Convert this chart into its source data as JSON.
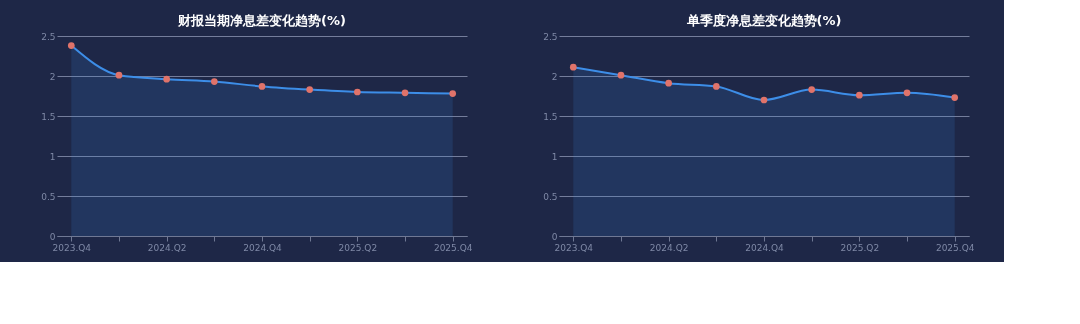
{
  "chart_data": [
    {
      "type": "area",
      "title": "财报当期净息差变化趋势(%)",
      "categories": [
        "2023.Q4",
        null,
        "2024.Q2",
        null,
        "2024.Q4",
        null,
        "2025.Q2",
        null,
        "2025.Q4"
      ],
      "series": [
        {
          "color": "#3d8ee8",
          "colors": [
            "#e0736a",
            "#e0736a",
            "#e0736a",
            "#e0736a",
            "#e0736a",
            "#e0736a",
            "#e0736a",
            "#e0736a",
            "#e0736a"
          ],
          "values": [
            2.38,
            2.01,
            1.96,
            1.93,
            1.87,
            1.83,
            1.8,
            1.79,
            1.78
          ]
        }
      ],
      "ylim": [
        0,
        2.5
      ],
      "yticks": [
        0,
        0.5,
        1,
        1.5,
        2,
        2.5
      ],
      "grid": "y",
      "marker": "circle",
      "line_style": "solid"
    },
    {
      "type": "area",
      "title": "单季度净息差变化趋势(%)",
      "categories": [
        "2023.Q4",
        null,
        "2024.Q2",
        null,
        "2024.Q4",
        null,
        "2025.Q2",
        null,
        "2025.Q4"
      ],
      "series": [
        {
          "color": "#3d8ee8",
          "colors": [
            "#e0736a",
            "#e0736a",
            "#e0736a",
            "#e0736a",
            "#e0736a",
            "#e0736a",
            "#e0736a",
            "#e0736a",
            "#e0736a"
          ],
          "values": [
            2.11,
            2.01,
            1.91,
            1.87,
            1.7,
            1.83,
            1.76,
            1.79,
            1.73
          ]
        }
      ],
      "ylim": [
        0,
        2.5
      ],
      "yticks": [
        0,
        0.5,
        1,
        1.5,
        2,
        2.5
      ],
      "grid": "y",
      "marker": "circle",
      "line_style": "solid"
    }
  ]
}
